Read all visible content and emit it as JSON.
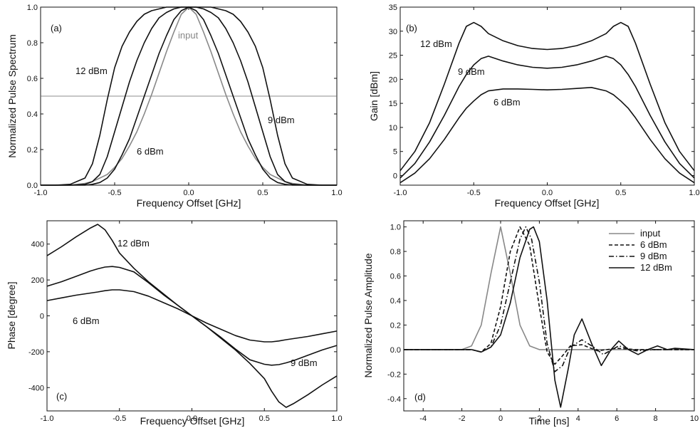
{
  "chart_data": [
    {
      "panel": "a",
      "panel_label": "(a)",
      "type": "line",
      "xlabel": "Frequency Offset [GHz]",
      "ylabel": "Normalized Pulse Spectrum",
      "xlim": [
        -1.0,
        1.0
      ],
      "ylim": [
        0.0,
        1.0
      ],
      "xticks": [
        "-1.0",
        "-0.5",
        "0.0",
        "0.5",
        "1.0"
      ],
      "yticks": [
        "0.0",
        "0.2",
        "0.4",
        "0.6",
        "0.8",
        "1.0"
      ],
      "reference_line_y": 0.5,
      "x": [
        -1.0,
        -0.9,
        -0.8,
        -0.7,
        -0.65,
        -0.6,
        -0.55,
        -0.5,
        -0.45,
        -0.4,
        -0.35,
        -0.3,
        -0.25,
        -0.2,
        -0.15,
        -0.1,
        -0.05,
        0.0,
        0.05,
        0.1,
        0.15,
        0.2,
        0.25,
        0.3,
        0.35,
        0.4,
        0.45,
        0.5,
        0.55,
        0.6,
        0.65,
        0.7,
        0.8,
        0.9,
        1.0
      ],
      "series": [
        {
          "color": "#888888",
          "annotation": "input",
          "values": [
            0.0,
            0.0,
            0.0,
            0.01,
            0.02,
            0.04,
            0.06,
            0.1,
            0.15,
            0.22,
            0.3,
            0.4,
            0.51,
            0.63,
            0.75,
            0.86,
            0.96,
            1.0,
            0.96,
            0.86,
            0.75,
            0.63,
            0.51,
            0.4,
            0.3,
            0.22,
            0.15,
            0.1,
            0.06,
            0.04,
            0.02,
            0.01,
            0.0,
            0.0,
            0.0
          ]
        },
        {
          "color": "#111111",
          "annotation": "6 dBm",
          "values": [
            0.0,
            0.0,
            0.0,
            0.0,
            0.005,
            0.015,
            0.04,
            0.09,
            0.17,
            0.26,
            0.38,
            0.5,
            0.62,
            0.74,
            0.84,
            0.93,
            0.98,
            1.0,
            0.98,
            0.93,
            0.84,
            0.74,
            0.62,
            0.5,
            0.38,
            0.26,
            0.17,
            0.09,
            0.04,
            0.015,
            0.005,
            0.0,
            0.0,
            0.0,
            0.0
          ]
        },
        {
          "color": "#111111",
          "annotation": "9 dBm",
          "values": [
            0.0,
            0.0,
            0.0,
            0.005,
            0.02,
            0.06,
            0.16,
            0.3,
            0.44,
            0.58,
            0.7,
            0.8,
            0.88,
            0.94,
            0.97,
            0.99,
            1.0,
            1.0,
            1.0,
            0.99,
            0.97,
            0.94,
            0.88,
            0.8,
            0.7,
            0.58,
            0.44,
            0.3,
            0.16,
            0.06,
            0.02,
            0.005,
            0.0,
            0.0,
            0.0
          ]
        },
        {
          "color": "#111111",
          "annotation": "12 dBm",
          "values": [
            0.0,
            0.0,
            0.005,
            0.04,
            0.12,
            0.28,
            0.48,
            0.66,
            0.78,
            0.86,
            0.92,
            0.96,
            0.98,
            0.99,
            1.0,
            1.0,
            1.0,
            1.0,
            1.0,
            1.0,
            1.0,
            0.99,
            0.98,
            0.96,
            0.92,
            0.86,
            0.78,
            0.66,
            0.48,
            0.28,
            0.12,
            0.04,
            0.005,
            0.0,
            0.0
          ]
        }
      ]
    },
    {
      "panel": "b",
      "panel_label": "(b)",
      "type": "line",
      "xlabel": "Frequency Offset [GHz]",
      "ylabel": "Gain [dBm]",
      "xlim": [
        -1.0,
        1.0
      ],
      "ylim": [
        -2,
        35
      ],
      "xticks": [
        "-1.0",
        "-0.5",
        "0.0",
        "0.5",
        "1.0"
      ],
      "yticks": [
        "0",
        "5",
        "10",
        "15",
        "20",
        "25",
        "30",
        "35"
      ],
      "x": [
        -1.0,
        -0.9,
        -0.8,
        -0.7,
        -0.6,
        -0.55,
        -0.5,
        -0.45,
        -0.4,
        -0.3,
        -0.2,
        -0.1,
        0.0,
        0.1,
        0.2,
        0.3,
        0.4,
        0.45,
        0.5,
        0.55,
        0.6,
        0.7,
        0.8,
        0.9,
        1.0
      ],
      "series": [
        {
          "annotation": "6 dBm",
          "values": [
            -1.5,
            0.5,
            3.5,
            7.5,
            12.0,
            14.0,
            15.5,
            16.8,
            17.6,
            18.0,
            18.0,
            17.9,
            17.8,
            17.9,
            18.1,
            18.3,
            17.6,
            16.8,
            15.5,
            14.0,
            12.0,
            7.5,
            3.5,
            0.5,
            -1.5
          ]
        },
        {
          "annotation": "9 dBm",
          "values": [
            -0.5,
            2.5,
            7.0,
            12.5,
            18.5,
            21.0,
            23.0,
            24.3,
            24.8,
            23.8,
            23.0,
            22.5,
            22.3,
            22.5,
            23.0,
            23.8,
            24.8,
            24.3,
            23.0,
            21.0,
            18.5,
            12.5,
            7.0,
            2.5,
            -0.5
          ]
        },
        {
          "annotation": "12 dBm",
          "values": [
            1.0,
            5.0,
            11.0,
            19.0,
            27.5,
            31.0,
            31.8,
            31.0,
            29.5,
            28.0,
            27.0,
            26.4,
            26.2,
            26.4,
            27.0,
            28.0,
            29.5,
            31.0,
            31.8,
            31.0,
            27.5,
            19.0,
            11.0,
            5.0,
            1.0
          ]
        }
      ]
    },
    {
      "panel": "c",
      "panel_label": "(c)",
      "type": "line",
      "xlabel": "Frequency Offset [GHz]",
      "ylabel": "Phase [degree]",
      "xlim": [
        -1.0,
        1.0
      ],
      "ylim": [
        -530,
        530
      ],
      "xticks": [
        "-1.0",
        "-0.5",
        "0.0",
        "0.5",
        "1.0"
      ],
      "yticks": [
        "-400",
        "-200",
        "0",
        "200",
        "400"
      ],
      "x": [
        -1.0,
        -0.9,
        -0.8,
        -0.7,
        -0.65,
        -0.6,
        -0.55,
        -0.5,
        -0.4,
        -0.3,
        -0.2,
        -0.1,
        0.0,
        0.1,
        0.2,
        0.3,
        0.4,
        0.5,
        0.55,
        0.6,
        0.65,
        0.7,
        0.8,
        0.9,
        1.0
      ],
      "series": [
        {
          "annotation": "6 dBm",
          "values": [
            85,
            100,
            115,
            127,
            133,
            140,
            145,
            145,
            135,
            110,
            75,
            40,
            0,
            -40,
            -75,
            -110,
            -135,
            -145,
            -145,
            -140,
            -133,
            -127,
            -115,
            -100,
            -85
          ]
        },
        {
          "annotation": "9 dBm",
          "values": [
            165,
            190,
            220,
            250,
            262,
            272,
            275,
            270,
            245,
            185,
            120,
            60,
            0,
            -60,
            -120,
            -185,
            -245,
            -270,
            -275,
            -272,
            -262,
            -250,
            -220,
            -190,
            -165
          ]
        },
        {
          "annotation": "12 dBm",
          "values": [
            335,
            385,
            440,
            490,
            510,
            480,
            420,
            350,
            265,
            190,
            125,
            60,
            0,
            -60,
            -125,
            -190,
            -265,
            -350,
            -420,
            -480,
            -510,
            -490,
            -440,
            -385,
            -335
          ]
        }
      ]
    },
    {
      "panel": "d",
      "panel_label": "(d)",
      "type": "line",
      "xlabel": "Time [ns]",
      "ylabel": "Normalized Pulse Amplitude",
      "xlim": [
        -5,
        10
      ],
      "ylim": [
        -0.5,
        1.05
      ],
      "xticks": [
        "-4",
        "-2",
        "0",
        "2",
        "4",
        "6",
        "8",
        "10"
      ],
      "yticks": [
        "-0.4",
        "-0.2",
        "0.0",
        "0.2",
        "0.4",
        "0.6",
        "0.8",
        "1.0"
      ],
      "legend": "top-right",
      "series": [
        {
          "name": "input",
          "style": "solid",
          "color": "#888888",
          "x": [
            -5,
            -2,
            -1.5,
            -1,
            -0.5,
            0,
            0.5,
            1,
            1.5,
            2,
            3,
            10
          ],
          "values": [
            0,
            0,
            0.03,
            0.2,
            0.62,
            1.0,
            0.62,
            0.2,
            0.03,
            0,
            0,
            0
          ]
        },
        {
          "name": "6 dBm",
          "style": "dashed",
          "color": "#111111",
          "x": [
            -5,
            -1.5,
            -1,
            -0.5,
            0,
            0.5,
            1,
            1.5,
            2,
            2.4,
            2.8,
            3.2,
            3.6,
            4.2,
            5,
            6,
            7,
            10
          ],
          "values": [
            0,
            0,
            -0.02,
            0.05,
            0.35,
            0.8,
            1.0,
            0.85,
            0.35,
            -0.02,
            -0.12,
            -0.05,
            0.03,
            0.04,
            -0.01,
            0.01,
            0,
            0
          ]
        },
        {
          "name": "9 dBm",
          "style": "dashdot",
          "color": "#111111",
          "x": [
            -5,
            -1.5,
            -1,
            -0.5,
            0,
            0.5,
            1,
            1.3,
            1.6,
            2,
            2.4,
            2.8,
            3.2,
            3.6,
            4.2,
            4.8,
            5.3,
            6.1,
            7,
            8,
            10
          ],
          "values": [
            0,
            0,
            -0.02,
            0.02,
            0.2,
            0.55,
            0.9,
            1.0,
            0.9,
            0.55,
            0.05,
            -0.18,
            -0.13,
            0.02,
            0.08,
            0.02,
            -0.04,
            0.03,
            -0.01,
            0,
            0
          ]
        },
        {
          "name": "12 dBm",
          "style": "solid",
          "color": "#111111",
          "x": [
            -5,
            -1.5,
            -1,
            -0.5,
            0,
            0.5,
            1,
            1.5,
            1.7,
            2,
            2.4,
            2.8,
            3.1,
            3.5,
            3.8,
            4.2,
            4.7,
            5.2,
            5.7,
            6.1,
            6.6,
            7.1,
            7.6,
            8.1,
            8.6,
            9,
            10
          ],
          "values": [
            0,
            0,
            -0.02,
            0.02,
            0.12,
            0.38,
            0.75,
            0.98,
            1.0,
            0.88,
            0.4,
            -0.25,
            -0.47,
            -0.15,
            0.12,
            0.25,
            0.05,
            -0.13,
            0.0,
            0.07,
            0.0,
            -0.04,
            0.0,
            0.03,
            0.0,
            0.01,
            0.0
          ]
        }
      ]
    }
  ]
}
